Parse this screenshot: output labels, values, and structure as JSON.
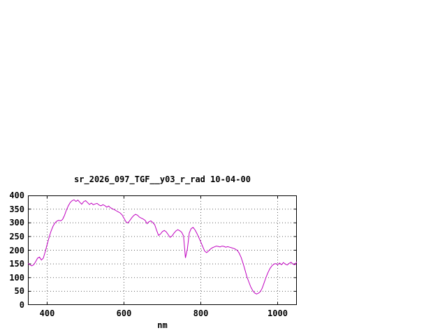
{
  "chart_data": {
    "type": "line",
    "title": "sr_2026_097_TGF__y03_r_rad 10-04-00",
    "xlabel": "nm",
    "ylabel": "",
    "xlim": [
      350,
      1050
    ],
    "ylim": [
      0,
      400
    ],
    "x_ticks": [
      400,
      600,
      800,
      1000
    ],
    "y_ticks": [
      0,
      50,
      100,
      150,
      200,
      250,
      300,
      350,
      400
    ],
    "grid": true,
    "legend": "none",
    "line_color": "#c000c0",
    "x": [
      350,
      355,
      360,
      365,
      370,
      375,
      380,
      385,
      390,
      395,
      400,
      405,
      410,
      415,
      420,
      425,
      430,
      435,
      440,
      445,
      450,
      455,
      460,
      465,
      470,
      475,
      480,
      485,
      490,
      495,
      500,
      505,
      510,
      515,
      520,
      525,
      530,
      535,
      540,
      545,
      550,
      555,
      560,
      565,
      570,
      575,
      580,
      585,
      590,
      595,
      600,
      605,
      610,
      615,
      620,
      625,
      630,
      635,
      640,
      645,
      650,
      655,
      660,
      665,
      670,
      675,
      680,
      685,
      690,
      695,
      700,
      705,
      710,
      715,
      720,
      725,
      730,
      735,
      740,
      745,
      750,
      755,
      760,
      765,
      770,
      775,
      780,
      785,
      790,
      795,
      800,
      805,
      810,
      815,
      820,
      825,
      830,
      835,
      840,
      845,
      850,
      855,
      860,
      865,
      870,
      875,
      880,
      885,
      890,
      895,
      900,
      905,
      910,
      915,
      920,
      925,
      930,
      935,
      940,
      945,
      950,
      955,
      960,
      965,
      970,
      975,
      980,
      985,
      990,
      995,
      1000,
      1005,
      1010,
      1015,
      1020,
      1025,
      1030,
      1035,
      1040,
      1045,
      1050
    ],
    "y": [
      152,
      147,
      143,
      147,
      158,
      171,
      175,
      164,
      171,
      194,
      221,
      247,
      269,
      287,
      299,
      306,
      309,
      307,
      312,
      326,
      346,
      362,
      374,
      381,
      384,
      378,
      383,
      375,
      368,
      377,
      381,
      374,
      367,
      372,
      366,
      369,
      371,
      365,
      362,
      366,
      363,
      357,
      361,
      355,
      351,
      348,
      344,
      340,
      336,
      329,
      317,
      304,
      299,
      308,
      318,
      326,
      331,
      328,
      321,
      317,
      314,
      309,
      297,
      304,
      307,
      301,
      293,
      272,
      254,
      259,
      268,
      272,
      267,
      257,
      247,
      252,
      262,
      270,
      275,
      271,
      266,
      252,
      172,
      205,
      263,
      279,
      283,
      274,
      261,
      246,
      230,
      213,
      197,
      191,
      197,
      204,
      209,
      212,
      215,
      214,
      212,
      215,
      214,
      211,
      213,
      211,
      209,
      207,
      204,
      199,
      189,
      173,
      152,
      128,
      103,
      84,
      66,
      53,
      44,
      40,
      43,
      49,
      62,
      82,
      102,
      119,
      133,
      143,
      149,
      151,
      147,
      153,
      147,
      155,
      149,
      146,
      152,
      156,
      149,
      147,
      158
    ]
  }
}
